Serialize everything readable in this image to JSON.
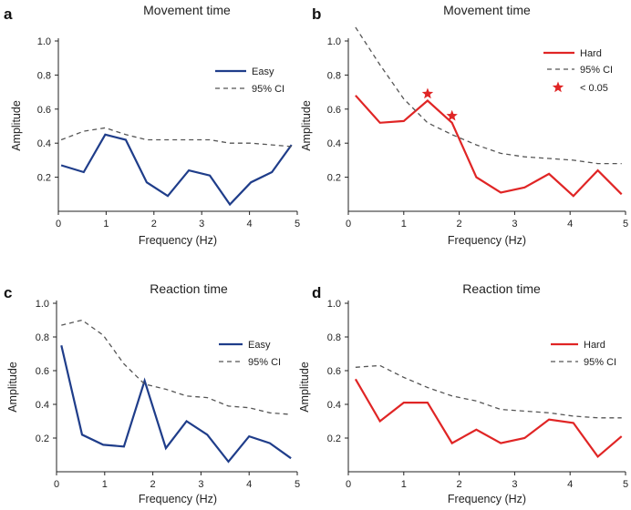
{
  "chart_data": [
    {
      "type": "line",
      "panel_label": "a",
      "title": "Movement time",
      "xlabel": "Frequency (Hz)",
      "ylabel": "Amplitude",
      "xlim": [
        0,
        5
      ],
      "ylim": [
        0,
        1.0
      ],
      "xticks": [
        "0",
        "1",
        "2",
        "3",
        "4",
        "5"
      ],
      "yticks": [
        "0.2",
        "0.4",
        "0.6",
        "0.8",
        "1.0"
      ],
      "legend": "top-right",
      "series": [
        {
          "name": "Easy",
          "style": "solid",
          "color": "#1f3d8a",
          "x": [
            0.06,
            0.53,
            0.98,
            1.41,
            1.85,
            2.29,
            2.73,
            3.17,
            3.59,
            4.03,
            4.47,
            4.88
          ],
          "y": [
            0.27,
            0.23,
            0.45,
            0.42,
            0.17,
            0.09,
            0.24,
            0.21,
            0.04,
            0.17,
            0.23,
            0.39
          ]
        },
        {
          "name": "95% CI",
          "style": "dashed",
          "color": "#555555",
          "x": [
            0.06,
            0.53,
            0.98,
            1.41,
            1.85,
            2.29,
            2.73,
            3.17,
            3.59,
            4.03,
            4.47,
            4.88
          ],
          "y": [
            0.42,
            0.47,
            0.49,
            0.45,
            0.42,
            0.42,
            0.42,
            0.42,
            0.4,
            0.4,
            0.39,
            0.38
          ]
        }
      ]
    },
    {
      "type": "line",
      "panel_label": "b",
      "title": "Movement time",
      "xlabel": "Frequency (Hz)",
      "ylabel": "Amplitude",
      "xlim": [
        0,
        5
      ],
      "ylim": [
        0,
        1.0
      ],
      "xticks": [
        "0",
        "1",
        "2",
        "3",
        "4",
        "5"
      ],
      "yticks": [
        "0.2",
        "0.4",
        "0.6",
        "0.8",
        "1.0"
      ],
      "legend": "top-right",
      "series": [
        {
          "name": "Hard",
          "style": "solid",
          "color": "#e02525",
          "x": [
            0.13,
            0.57,
            1.0,
            1.43,
            1.87,
            2.31,
            2.75,
            3.18,
            3.62,
            4.06,
            4.5,
            4.93
          ],
          "y": [
            0.68,
            0.52,
            0.53,
            0.65,
            0.52,
            0.2,
            0.11,
            0.14,
            0.22,
            0.09,
            0.24,
            0.1
          ]
        },
        {
          "name": "95% CI",
          "style": "dashed",
          "color": "#555555",
          "x": [
            0.13,
            0.57,
            1.0,
            1.43,
            1.87,
            2.31,
            2.75,
            3.18,
            3.62,
            4.06,
            4.5,
            4.93
          ],
          "y": [
            1.08,
            0.86,
            0.66,
            0.52,
            0.45,
            0.39,
            0.34,
            0.32,
            0.31,
            0.3,
            0.28,
            0.28
          ]
        }
      ],
      "markers": {
        "name": "< 0.05",
        "symbol": "star",
        "color": "#e02525",
        "x": [
          1.43,
          1.87
        ],
        "y": [
          0.69,
          0.56
        ]
      }
    },
    {
      "type": "line",
      "panel_label": "c",
      "title": "Reaction time",
      "xlabel": "Frequency (Hz)",
      "ylabel": "Amplitude",
      "xlim": [
        0,
        5
      ],
      "ylim": [
        0,
        1.0
      ],
      "xticks": [
        "0",
        "1",
        "2",
        "3",
        "4",
        "5"
      ],
      "yticks": [
        "0.2",
        "0.4",
        "0.6",
        "0.8",
        "1.0"
      ],
      "legend": "center-right",
      "series": [
        {
          "name": "Easy",
          "style": "solid",
          "color": "#1f3d8a",
          "x": [
            0.1,
            0.53,
            0.97,
            1.4,
            1.83,
            2.27,
            2.7,
            3.13,
            3.57,
            4.0,
            4.43,
            4.87
          ],
          "y": [
            0.75,
            0.22,
            0.16,
            0.15,
            0.54,
            0.14,
            0.3,
            0.22,
            0.06,
            0.21,
            0.17,
            0.08
          ]
        },
        {
          "name": "95% CI",
          "style": "dashed",
          "color": "#555555",
          "x": [
            0.1,
            0.53,
            0.97,
            1.4,
            1.83,
            2.27,
            2.7,
            3.13,
            3.57,
            4.0,
            4.43,
            4.87
          ],
          "y": [
            0.87,
            0.9,
            0.81,
            0.64,
            0.52,
            0.49,
            0.45,
            0.44,
            0.39,
            0.38,
            0.35,
            0.34
          ]
        }
      ]
    },
    {
      "type": "line",
      "panel_label": "d",
      "title": "Reaction time",
      "xlabel": "Frequency (Hz)",
      "ylabel": "Amplitude",
      "xlim": [
        0,
        5
      ],
      "ylim": [
        0,
        1.0
      ],
      "xticks": [
        "0",
        "1",
        "2",
        "3",
        "4",
        "5"
      ],
      "yticks": [
        "0.2",
        "0.4",
        "0.6",
        "0.8",
        "1.0"
      ],
      "legend": "center-right",
      "series": [
        {
          "name": "Hard",
          "style": "solid",
          "color": "#e02525",
          "x": [
            0.13,
            0.57,
            1.0,
            1.43,
            1.87,
            2.31,
            2.75,
            3.18,
            3.62,
            4.06,
            4.5,
            4.93
          ],
          "y": [
            0.55,
            0.3,
            0.41,
            0.41,
            0.17,
            0.25,
            0.17,
            0.2,
            0.31,
            0.29,
            0.09,
            0.21
          ]
        },
        {
          "name": "95% CI",
          "style": "dashed",
          "color": "#555555",
          "x": [
            0.13,
            0.57,
            1.0,
            1.43,
            1.87,
            2.31,
            2.75,
            3.18,
            3.62,
            4.06,
            4.5,
            4.93
          ],
          "y": [
            0.62,
            0.63,
            0.56,
            0.5,
            0.45,
            0.42,
            0.37,
            0.36,
            0.35,
            0.33,
            0.32,
            0.32
          ]
        }
      ]
    }
  ]
}
